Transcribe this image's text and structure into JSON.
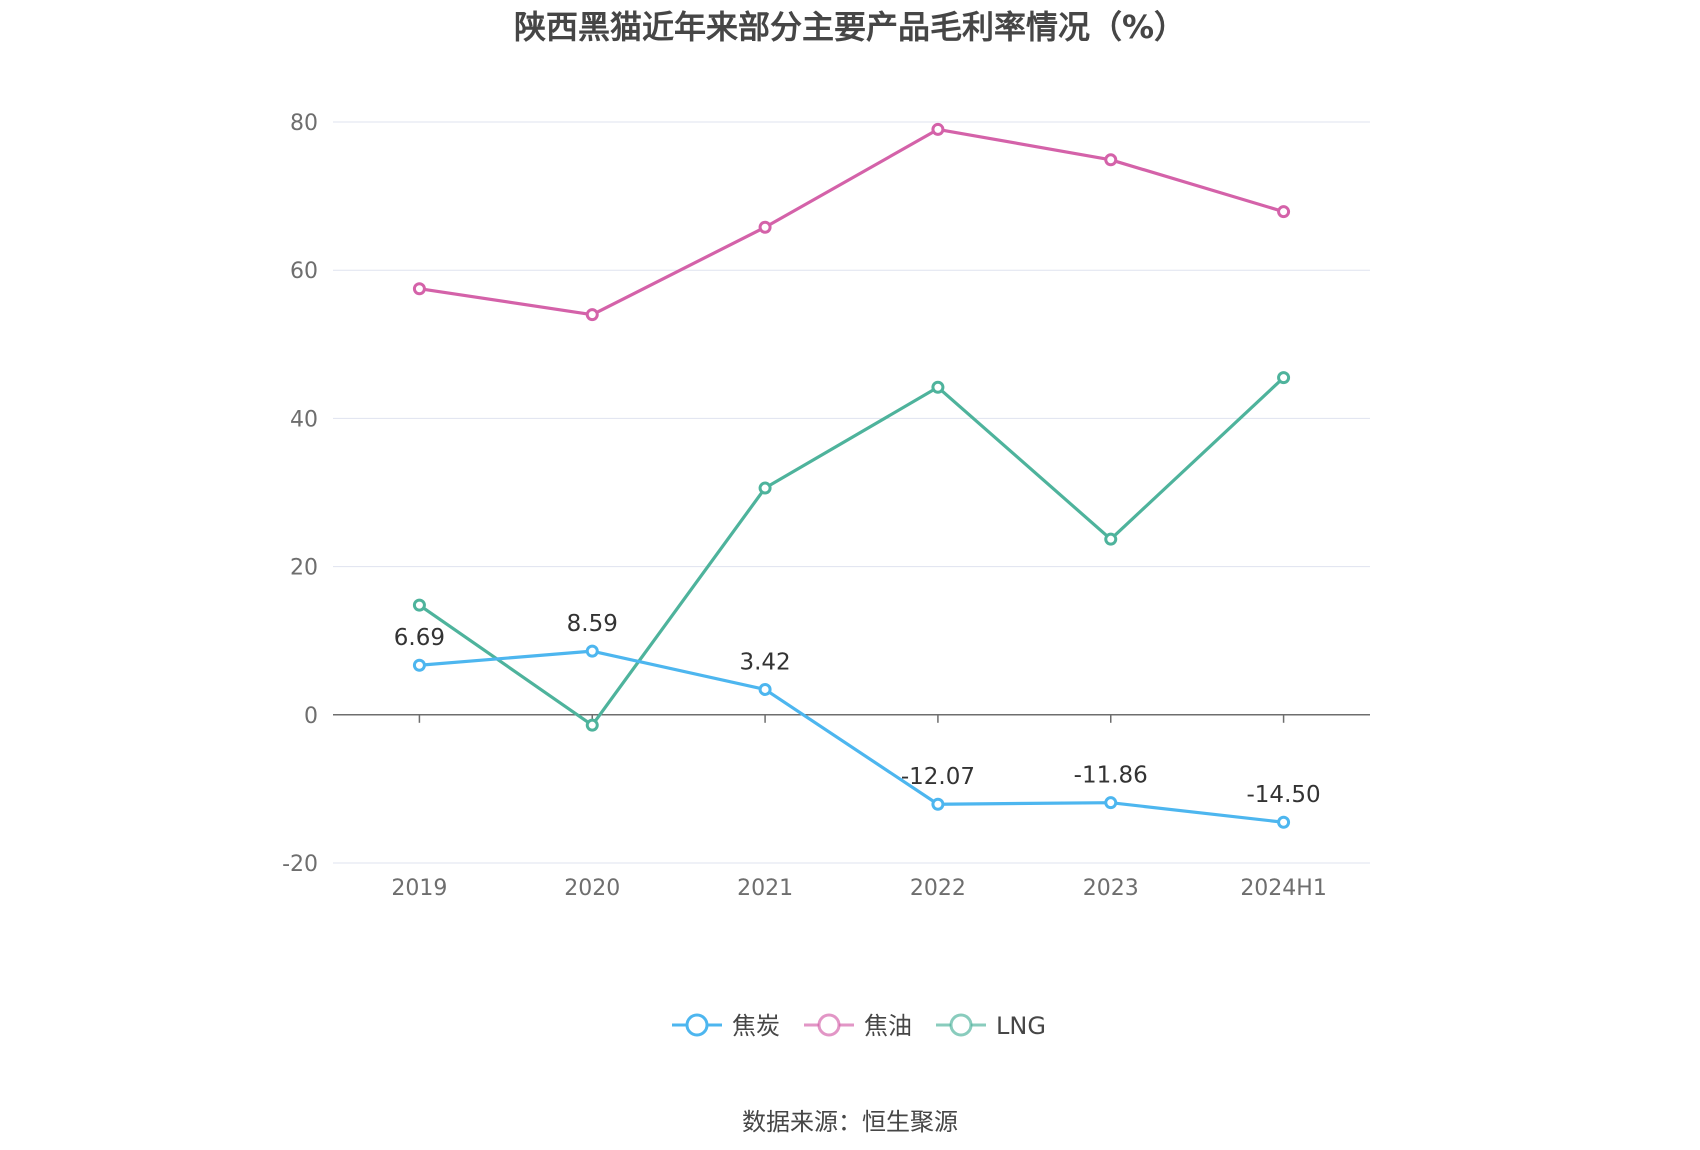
{
  "chart_data": {
    "type": "line",
    "title": "陕西黑猫近年来部分主要产品毛利率情况（%）",
    "source": "数据来源：恒生聚源",
    "categories": [
      "2019",
      "2020",
      "2021",
      "2022",
      "2023",
      "2024H1"
    ],
    "ylim": [
      -20,
      80
    ],
    "yticks": [
      "-20",
      "0",
      "20",
      "40",
      "60",
      "80"
    ],
    "series": [
      {
        "name": "焦炭",
        "color": "#4db6ef",
        "values": [
          6.69,
          8.59,
          3.42,
          -12.07,
          -11.86,
          -14.5
        ],
        "labels": [
          "6.69",
          "8.59",
          "3.42",
          "-12.07",
          "-11.86",
          "-14.50"
        ]
      },
      {
        "name": "焦油",
        "color": "#d462a9",
        "values": [
          57.5,
          54.0,
          65.8,
          79.0,
          74.9,
          67.9
        ]
      },
      {
        "name": "LNG",
        "color": "#4eb39c",
        "values": [
          14.8,
          -1.4,
          30.6,
          44.2,
          23.7,
          45.5
        ]
      }
    ]
  }
}
